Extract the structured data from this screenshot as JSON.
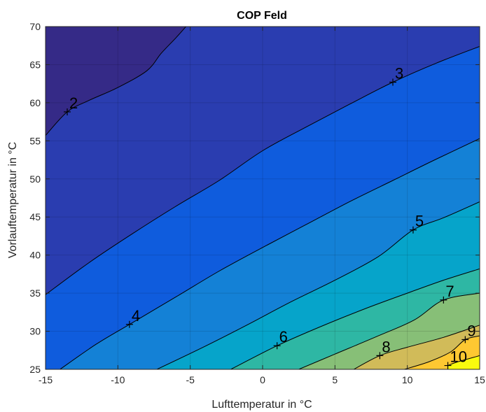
{
  "chart_data": {
    "type": "contour",
    "title": "COP Feld",
    "xlabel": "Lufttemperatur in °C",
    "ylabel": "Vorlauftemperatur in °C",
    "xlim": [
      -15,
      15
    ],
    "ylim": [
      25,
      70
    ],
    "x_ticks": [
      -15,
      -10,
      -5,
      0,
      5,
      10,
      15
    ],
    "y_ticks": [
      25,
      30,
      35,
      40,
      45,
      50,
      55,
      60,
      65,
      70
    ],
    "grid": true,
    "colormap": "parula",
    "levels": [
      {
        "value": 2,
        "color": "#352a87",
        "points": [
          [
            -15,
            55.7
          ],
          [
            -13.5,
            58.8
          ],
          [
            -12,
            60.3
          ],
          [
            -10,
            62.0
          ],
          [
            -8,
            64.2
          ],
          [
            -7,
            66.5
          ],
          [
            -6,
            68.5
          ],
          [
            -5.3,
            70
          ]
        ]
      },
      {
        "value": 3,
        "color": "#2a3db0",
        "points": [
          [
            -15,
            34.8
          ],
          [
            -12,
            39.0
          ],
          [
            -9,
            42.8
          ],
          [
            -6,
            46.4
          ],
          [
            -3,
            49.8
          ],
          [
            0,
            53.7
          ],
          [
            3,
            56.8
          ],
          [
            6,
            59.8
          ],
          [
            9,
            62.7
          ],
          [
            12,
            65.2
          ],
          [
            15,
            67.4
          ]
        ]
      },
      {
        "value": 4,
        "color": "#0f5cdd",
        "points": [
          [
            -14,
            25
          ],
          [
            -11.5,
            28.3
          ],
          [
            -9.2,
            30.9
          ],
          [
            -6,
            34.5
          ],
          [
            -3,
            37.9
          ],
          [
            0,
            41.0
          ],
          [
            3,
            44.0
          ],
          [
            6,
            47.0
          ],
          [
            9,
            49.8
          ],
          [
            12,
            52.6
          ],
          [
            15,
            55.3
          ]
        ]
      },
      {
        "value": 5,
        "color": "#1481d6",
        "points": [
          [
            -7.3,
            25
          ],
          [
            -4,
            28.0
          ],
          [
            -1,
            30.9
          ],
          [
            2,
            33.9
          ],
          [
            5,
            36.7
          ],
          [
            8,
            39.8
          ],
          [
            10.4,
            43.3
          ],
          [
            12.5,
            44.9
          ],
          [
            15,
            47.0
          ]
        ]
      },
      {
        "value": 6,
        "color": "#06a4ca",
        "points": [
          [
            -2.2,
            25
          ],
          [
            1,
            28.1
          ],
          [
            4,
            30.6
          ],
          [
            7,
            32.9
          ],
          [
            10,
            35.0
          ],
          [
            12.5,
            36.7
          ],
          [
            15,
            38.2
          ]
        ]
      },
      {
        "value": 7,
        "color": "#2eb7a4",
        "points": [
          [
            2.5,
            25
          ],
          [
            5,
            27.0
          ],
          [
            8,
            29.4
          ],
          [
            10.5,
            31.5
          ],
          [
            12.5,
            34.1
          ],
          [
            15,
            35.0
          ]
        ]
      },
      {
        "value": 8,
        "color": "#87bf77",
        "points": [
          [
            6.3,
            25
          ],
          [
            8.1,
            26.8
          ],
          [
            10,
            27.9
          ],
          [
            12.5,
            29.2
          ],
          [
            15,
            30.8
          ]
        ]
      },
      {
        "value": 9,
        "color": "#d1bb59",
        "points": [
          [
            9.8,
            25
          ],
          [
            11.5,
            26.0
          ],
          [
            13,
            27.3
          ],
          [
            14,
            28.9
          ],
          [
            15,
            29.4
          ]
        ]
      },
      {
        "value": 10,
        "color": "#fec832",
        "points": [
          [
            12.8,
            25.5
          ],
          [
            13.5,
            26.0
          ],
          [
            15,
            26.8
          ]
        ]
      }
    ],
    "top_fill_color": "#f9fb0e",
    "labels": [
      {
        "text": "2",
        "x": -13.5,
        "y": 58.8
      },
      {
        "text": "3",
        "x": 9.0,
        "y": 62.7
      },
      {
        "text": "4",
        "x": -9.2,
        "y": 30.9
      },
      {
        "text": "5",
        "x": 10.4,
        "y": 43.3
      },
      {
        "text": "6",
        "x": 1.0,
        "y": 28.1
      },
      {
        "text": "7",
        "x": 12.5,
        "y": 34.1
      },
      {
        "text": "8",
        "x": 8.1,
        "y": 26.8
      },
      {
        "text": "9",
        "x": 14.0,
        "y": 28.9
      },
      {
        "text": "10",
        "x": 12.8,
        "y": 25.5
      }
    ]
  }
}
